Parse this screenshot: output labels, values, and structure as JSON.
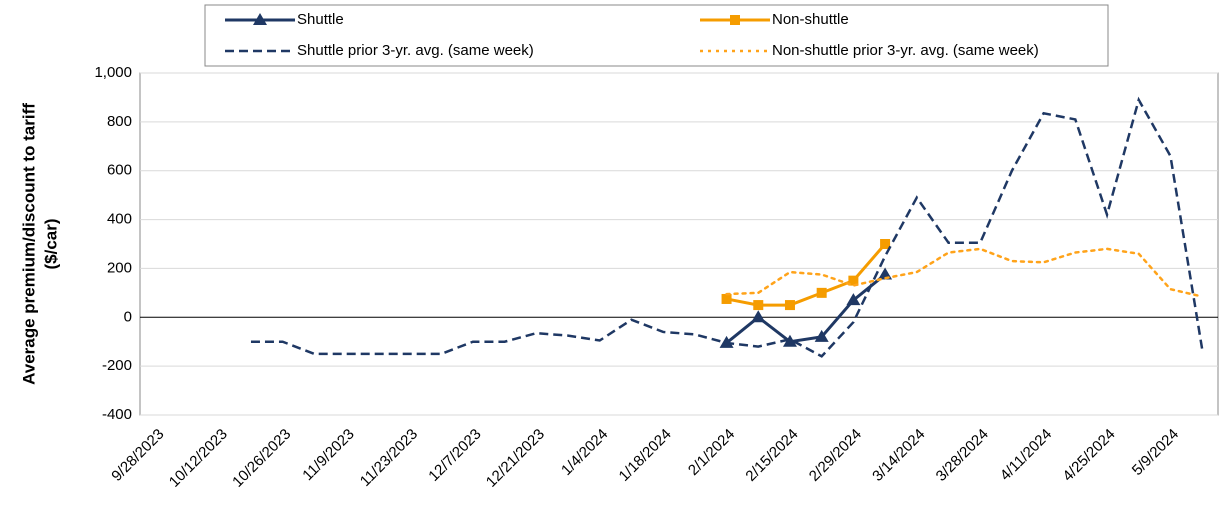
{
  "chart_data": {
    "type": "line",
    "y_label": [
      "Average premium/discount to tariff",
      "($/car)"
    ],
    "categories": [
      "9/28/2023",
      null,
      "10/12/2023",
      null,
      "10/26/2023",
      null,
      "11/9/2023",
      null,
      "11/23/2023",
      null,
      "12/7/2023",
      null,
      "12/21/2023",
      null,
      "1/4/2024",
      null,
      "1/18/2024",
      null,
      "2/1/2024",
      null,
      "2/15/2024",
      null,
      "2/29/2024",
      null,
      "3/14/2024",
      null,
      "3/28/2024",
      null,
      "4/11/2024",
      null,
      "4/25/2024",
      null,
      "5/9/2024",
      null
    ],
    "series": [
      {
        "name": "Shuttle",
        "color": "#1f3864",
        "style": "solid",
        "marker": "triangle",
        "values": [
          null,
          null,
          null,
          null,
          null,
          null,
          null,
          null,
          null,
          null,
          null,
          null,
          null,
          null,
          null,
          null,
          null,
          null,
          -105,
          0,
          -100,
          -80,
          70,
          175,
          null,
          null,
          null,
          null,
          null,
          null,
          null,
          null,
          null,
          null
        ]
      },
      {
        "name": "Non-shuttle",
        "color": "#f59c00",
        "style": "solid",
        "marker": "square",
        "values": [
          null,
          null,
          null,
          null,
          null,
          null,
          null,
          null,
          null,
          null,
          null,
          null,
          null,
          null,
          null,
          null,
          null,
          null,
          75,
          50,
          50,
          100,
          150,
          300,
          null,
          null,
          null,
          null,
          null,
          null,
          null,
          null,
          null,
          null
        ]
      },
      {
        "name": "Shuttle prior 3-yr. avg. (same week)",
        "color": "#1f3864",
        "style": "dashed",
        "values": [
          null,
          null,
          null,
          -100,
          -100,
          -150,
          -150,
          -150,
          -150,
          -150,
          -100,
          -100,
          -65,
          -75,
          -95,
          -10,
          -60,
          -70,
          -105,
          -120,
          -90,
          -160,
          -20,
          250,
          490,
          305,
          305,
          600,
          835,
          810,
          420,
          890,
          660,
          -130
        ]
      },
      {
        "name": "Non-shuttle prior 3-yr. avg. (same week)",
        "color": "#ffa31a",
        "style": "dotted",
        "values": [
          null,
          null,
          null,
          null,
          null,
          null,
          null,
          null,
          null,
          null,
          null,
          null,
          null,
          null,
          null,
          null,
          null,
          null,
          95,
          100,
          185,
          175,
          130,
          160,
          185,
          265,
          280,
          230,
          225,
          265,
          280,
          260,
          115,
          85
        ]
      }
    ],
    "ylim": [
      -400,
      1000
    ],
    "yticks": [
      -400,
      -200,
      0,
      200,
      400,
      600,
      800,
      {
        "value": 1000,
        "label": "1,000"
      }
    ],
    "grid": true
  }
}
